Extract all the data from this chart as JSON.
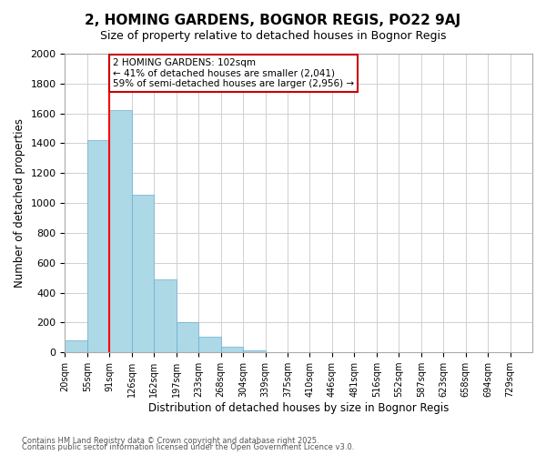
{
  "title": "2, HOMING GARDENS, BOGNOR REGIS, PO22 9AJ",
  "subtitle": "Size of property relative to detached houses in Bognor Regis",
  "xlabel": "Distribution of detached houses by size in Bognor Regis",
  "ylabel": "Number of detached properties",
  "bar_values": [
    80,
    1420,
    1625,
    1055,
    490,
    205,
    105,
    35,
    15,
    0,
    0,
    0,
    0,
    0,
    0,
    0,
    0,
    0,
    0,
    0,
    0
  ],
  "categories": [
    "20sqm",
    "55sqm",
    "91sqm",
    "126sqm",
    "162sqm",
    "197sqm",
    "233sqm",
    "268sqm",
    "304sqm",
    "339sqm",
    "375sqm",
    "410sqm",
    "446sqm",
    "481sqm",
    "516sqm",
    "552sqm",
    "587sqm",
    "623sqm",
    "658sqm",
    "694sqm",
    "729sqm"
  ],
  "bar_color": "#add8e6",
  "bar_edge_color": "#6baed6",
  "vline_x": 2.0,
  "vline_color": "red",
  "annotation_title": "2 HOMING GARDENS: 102sqm",
  "annotation_line1": "← 41% of detached houses are smaller (2,041)",
  "annotation_line2": "59% of semi-detached houses are larger (2,956) →",
  "annotation_box_color": "#ffffff",
  "annotation_box_edge": "#cc0000",
  "ylim": [
    0,
    2000
  ],
  "yticks": [
    0,
    200,
    400,
    600,
    800,
    1000,
    1200,
    1400,
    1600,
    1800,
    2000
  ],
  "footer1": "Contains HM Land Registry data © Crown copyright and database right 2025.",
  "footer2": "Contains public sector information licensed under the Open Government Licence v3.0.",
  "background_color": "#ffffff",
  "grid_color": "#d0d0d0"
}
